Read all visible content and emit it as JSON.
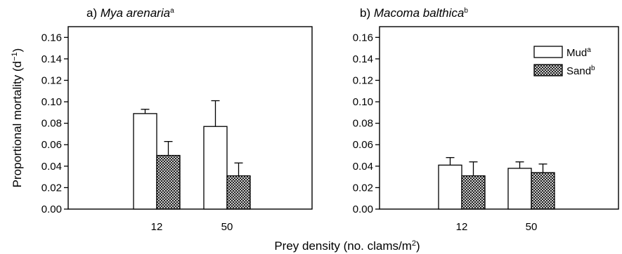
{
  "chart_data": {
    "type": "bar",
    "xlabel": "Prey density (no. clams/m",
    "xlabel_sup": "2",
    "xlabel_end": ")",
    "ylabel": "Proportional mortality (d",
    "ylabel_sup": "−1",
    "ylabel_end": ")",
    "ylim": [
      0,
      0.17
    ],
    "yticks": [
      "0.00",
      "0.02",
      "0.04",
      "0.06",
      "0.08",
      "0.10",
      "0.12",
      "0.14",
      "0.16"
    ],
    "legend": {
      "placement": "top-right of panel b",
      "entries": [
        {
          "label": "Mud",
          "sup": "a",
          "fill": "#ffffff"
        },
        {
          "label": "Sand",
          "sup": "b",
          "fill": "hatched"
        }
      ]
    },
    "panels": [
      {
        "prefix": "a) ",
        "species": "Mya arenaria",
        "sup": "a",
        "categories": [
          "12",
          "50"
        ],
        "series": [
          {
            "name": "Mud",
            "values": [
              0.089,
              0.077
            ],
            "errors": [
              0.004,
              0.024
            ]
          },
          {
            "name": "Sand",
            "values": [
              0.05,
              0.031
            ],
            "errors": [
              0.013,
              0.012
            ]
          }
        ]
      },
      {
        "prefix": "b) ",
        "species": "Macoma balthica",
        "sup": "b",
        "categories": [
          "12",
          "50"
        ],
        "series": [
          {
            "name": "Mud",
            "values": [
              0.041,
              0.038
            ],
            "errors": [
              0.007,
              0.006
            ]
          },
          {
            "name": "Sand",
            "values": [
              0.031,
              0.034
            ],
            "errors": [
              0.013,
              0.008
            ]
          }
        ]
      }
    ]
  }
}
